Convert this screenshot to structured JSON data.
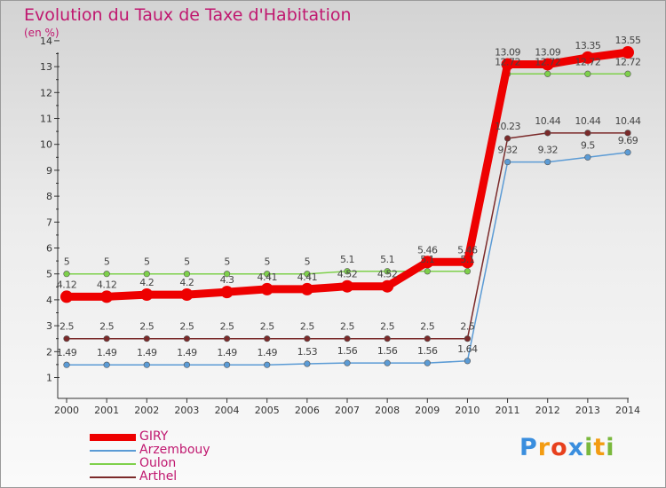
{
  "title": "Evolution du Taux de Taxe d'Habitation",
  "unit": "(en %)",
  "brand": "Proxiti",
  "brand_colors": [
    "#3a8ede",
    "#f39c12",
    "#e7401e",
    "#3a8ede",
    "#7ab83c",
    "#f39c12",
    "#7ab83c"
  ],
  "chart_data": {
    "type": "line",
    "title": "Evolution du Taux de Taxe d'Habitation",
    "ylabel": "(en %)",
    "xlabel": "",
    "x": [
      "2000",
      "2001",
      "2002",
      "2003",
      "2004",
      "2005",
      "2006",
      "2007",
      "2008",
      "2009",
      "2010",
      "2011",
      "2012",
      "2013",
      "2014"
    ],
    "ylim": [
      0.5,
      14
    ],
    "yticks": [
      "1",
      "2",
      "3",
      "4",
      "5",
      "6",
      "7",
      "8",
      "9",
      "10",
      "11",
      "12",
      "13",
      "14"
    ],
    "legend_position": "bottom-left",
    "series": [
      {
        "name": "GIRY",
        "color": "#ee0000",
        "values": [
          4.12,
          4.12,
          4.2,
          4.2,
          4.3,
          4.41,
          4.41,
          4.52,
          4.52,
          5.46,
          5.46,
          13.09,
          13.09,
          13.35,
          13.55
        ],
        "labels": [
          "4.12",
          "4.12",
          "4.2",
          "4.2",
          "4.3",
          "4.41",
          "4.41",
          "4.52",
          "4.52",
          "5.46",
          "5.46",
          "13.09",
          "13.09",
          "13.35",
          "13.55"
        ]
      },
      {
        "name": "Arzembouy",
        "color": "#5b9bd5",
        "values": [
          1.49,
          1.49,
          1.49,
          1.49,
          1.49,
          1.49,
          1.53,
          1.56,
          1.56,
          1.56,
          1.64,
          9.32,
          9.32,
          9.5,
          9.69
        ],
        "labels": [
          "1.49",
          "1.49",
          "1.49",
          "1.49",
          "1.49",
          "1.49",
          "1.53",
          "1.56",
          "1.56",
          "1.56",
          "1.64",
          "9.32",
          "9.32",
          "9.5",
          "9.69"
        ]
      },
      {
        "name": "Oulon",
        "color": "#7ed04b",
        "values": [
          5,
          5,
          5,
          5,
          5,
          5,
          5,
          5.1,
          5.1,
          5.1,
          5.1,
          12.72,
          12.72,
          12.72,
          12.72
        ],
        "labels": [
          "5",
          "5",
          "5",
          "5",
          "5",
          "5",
          "5",
          "5.1",
          "5.1",
          "5.1",
          "5.1",
          "12.72",
          "12.72",
          "12.72",
          "12.72"
        ]
      },
      {
        "name": "Arthel",
        "color": "#7b2a2a",
        "values": [
          2.5,
          2.5,
          2.5,
          2.5,
          2.5,
          2.5,
          2.5,
          2.5,
          2.5,
          2.5,
          2.5,
          10.23,
          10.44,
          10.44,
          10.44
        ],
        "labels": [
          "2.5",
          "2.5",
          "2.5",
          "2.5",
          "2.5",
          "2.5",
          "2.5",
          "2.5",
          "2.5",
          "2.5",
          "2.5",
          "10.23",
          "10.44",
          "10.44",
          "10.44"
        ]
      }
    ]
  }
}
